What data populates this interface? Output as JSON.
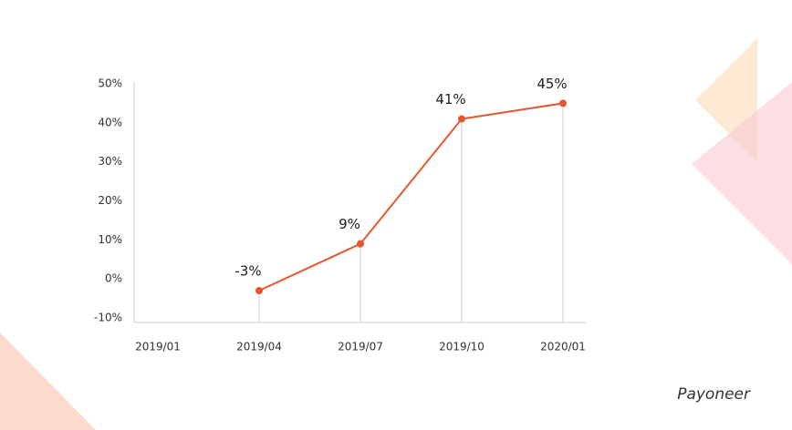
{
  "chart_data": {
    "type": "line",
    "categories": [
      "2019/01",
      "2019/04",
      "2019/07",
      "2019/10",
      "2020/01"
    ],
    "series": [
      {
        "color": "#e4572e",
        "values": [
          null,
          -3,
          9,
          41,
          45
        ],
        "value_labels": [
          null,
          "-3%",
          "9%",
          "41%",
          "45%"
        ]
      }
    ],
    "ylim": [
      -10,
      50
    ],
    "yticks": [
      {
        "value": -10,
        "label": "-10%"
      },
      {
        "value": 0,
        "label": "0%"
      },
      {
        "value": 10,
        "label": "10%"
      },
      {
        "value": 20,
        "label": "20%"
      },
      {
        "value": 30,
        "label": "30%"
      },
      {
        "value": 40,
        "label": "40%"
      },
      {
        "value": 50,
        "label": "50%"
      }
    ],
    "drop_lines": true
  },
  "logo": "Payoneer"
}
